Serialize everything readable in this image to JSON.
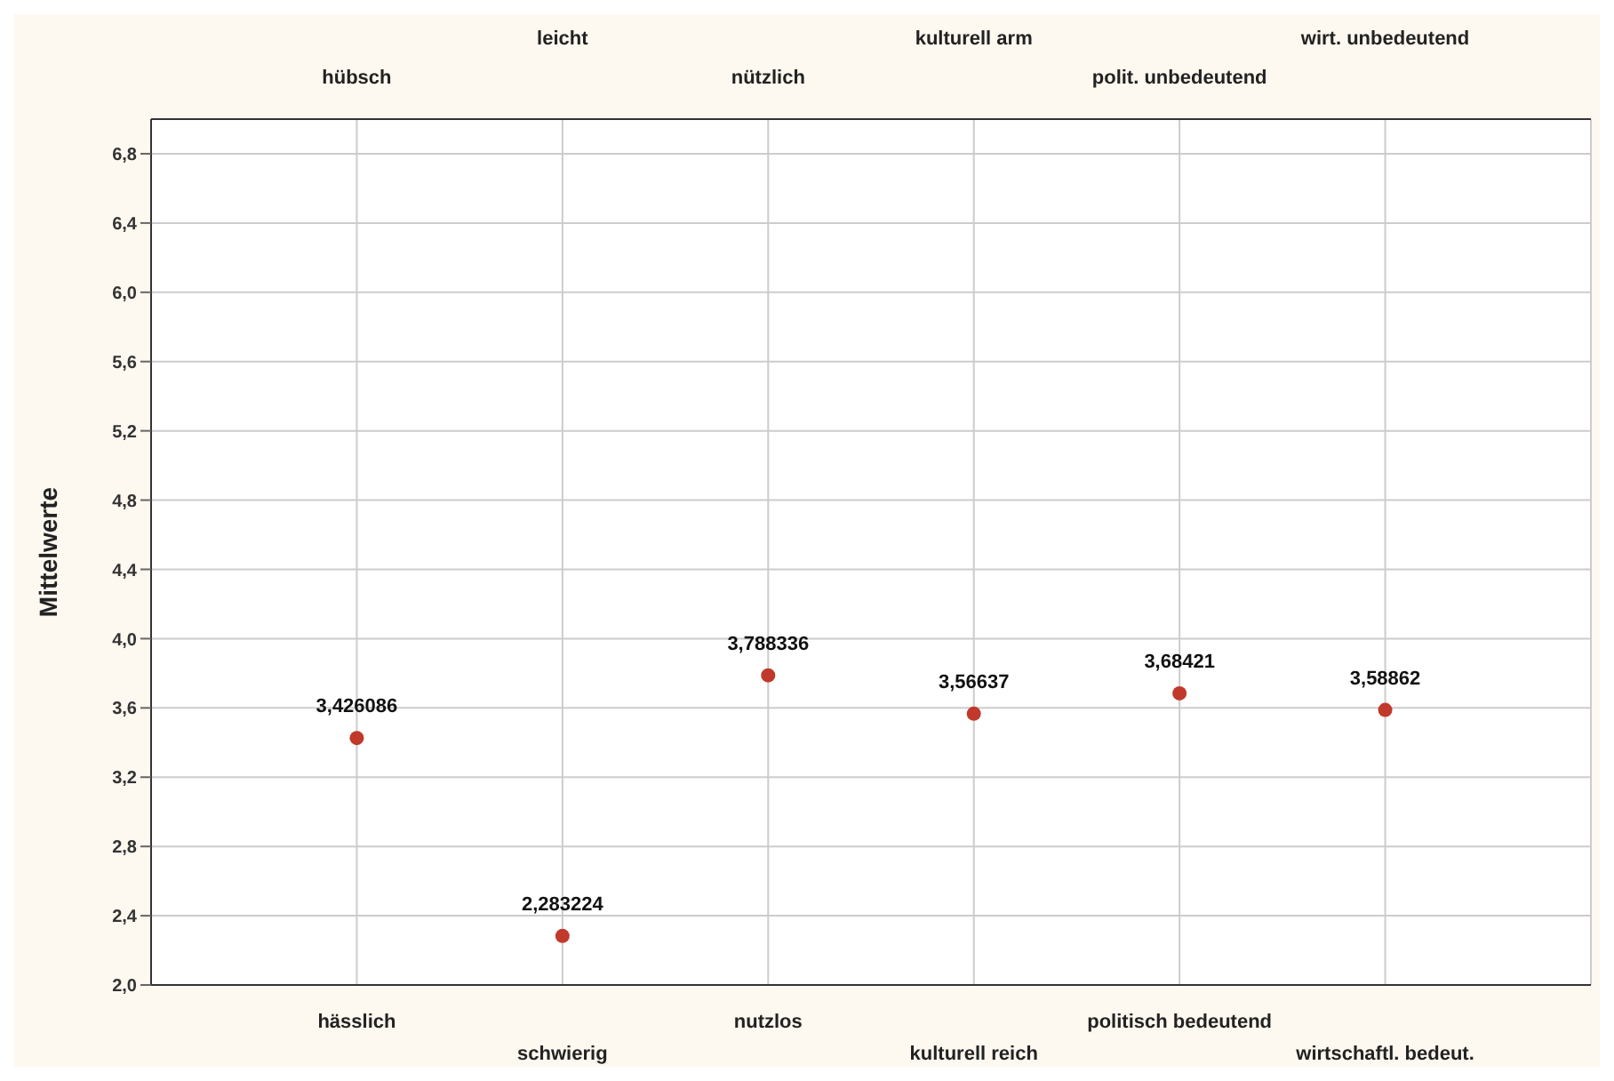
{
  "chart_data": {
    "type": "scatter",
    "ylabel": "Mittelwerte",
    "categories": [
      "hässlich",
      "schwierig",
      "nutzlos",
      "kulturell reich",
      "politisch bedeutend",
      "wirtschaftl. bedeut."
    ],
    "annotations": [
      "hübsch",
      "leicht",
      "nützlich",
      "kulturell arm",
      "polit. unbedeutend",
      "wirt. unbedeutend"
    ],
    "series": [
      {
        "color": "#c0392b",
        "values": [
          3.426086,
          2.283224,
          3.788336,
          3.56637,
          3.68421,
          3.58862
        ],
        "value_labels": [
          "3,426086",
          "2,283224",
          "3,788336",
          "3,56637",
          "3,68421",
          "3,58862"
        ]
      }
    ],
    "ylim": [
      2.0,
      7.0
    ],
    "yticks": [
      {
        "value": 2.0,
        "label": "2,0"
      },
      {
        "value": 2.4,
        "label": "2,4"
      },
      {
        "value": 2.8,
        "label": "2,8"
      },
      {
        "value": 3.2,
        "label": "3,2"
      },
      {
        "value": 3.6,
        "label": "3,6"
      },
      {
        "value": 4.0,
        "label": "4,0"
      },
      {
        "value": 4.4,
        "label": "4,4"
      },
      {
        "value": 4.8,
        "label": "4,8"
      },
      {
        "value": 5.2,
        "label": "5,2"
      },
      {
        "value": 5.6,
        "label": "5,6"
      },
      {
        "value": 6.0,
        "label": "6,0"
      },
      {
        "value": 6.4,
        "label": "6,4"
      },
      {
        "value": 6.8,
        "label": "6,8"
      }
    ],
    "grid": true,
    "marker": "circle"
  }
}
